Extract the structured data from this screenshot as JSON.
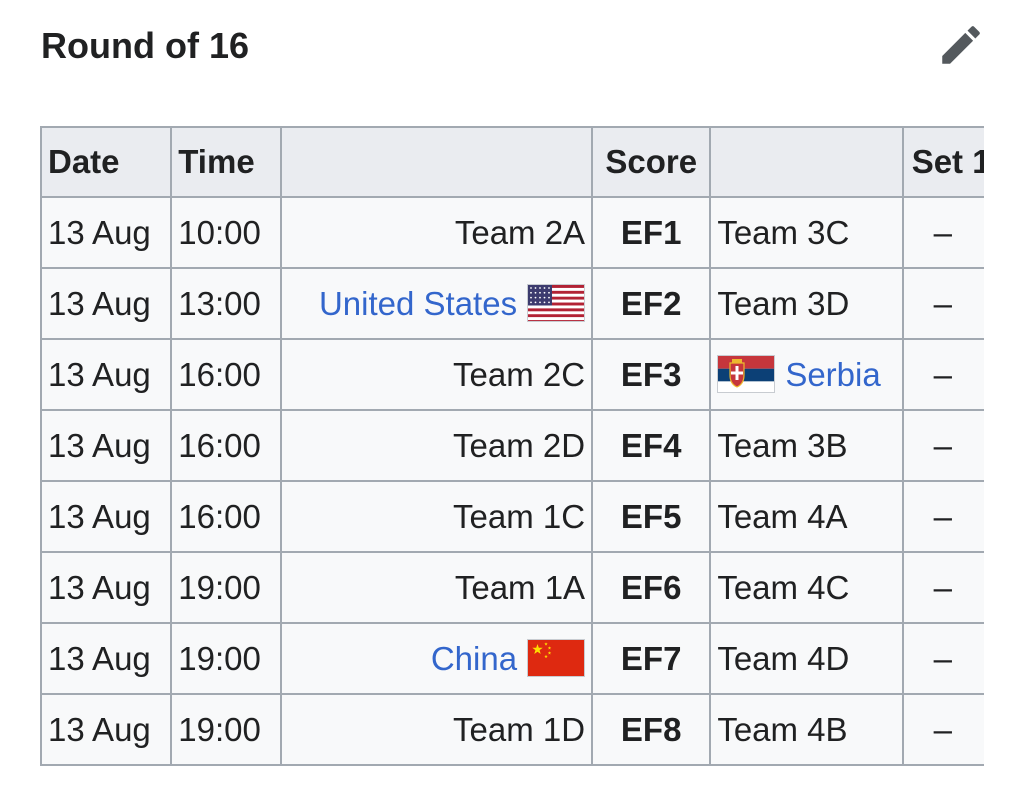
{
  "section": {
    "title": "Round of 16",
    "edit_icon": "pencil-icon"
  },
  "table": {
    "headers": {
      "date": "Date",
      "time": "Time",
      "home": "",
      "score": "Score",
      "away": "",
      "set1": "Set 1"
    },
    "rows": [
      {
        "date": "13 Aug",
        "time": "10:00",
        "home": "Team 2A",
        "home_link": false,
        "home_flag": "",
        "score": "EF1",
        "away": "Team 3C",
        "away_link": false,
        "away_flag": "",
        "set1": "–"
      },
      {
        "date": "13 Aug",
        "time": "13:00",
        "home": "United States",
        "home_link": true,
        "home_flag": "usa-flag-icon",
        "score": "EF2",
        "away": "Team 3D",
        "away_link": false,
        "away_flag": "",
        "set1": "–"
      },
      {
        "date": "13 Aug",
        "time": "16:00",
        "home": "Team 2C",
        "home_link": false,
        "home_flag": "",
        "score": "EF3",
        "away": "Serbia",
        "away_link": true,
        "away_flag": "serbia-flag-icon",
        "set1": "–"
      },
      {
        "date": "13 Aug",
        "time": "16:00",
        "home": "Team 2D",
        "home_link": false,
        "home_flag": "",
        "score": "EF4",
        "away": "Team 3B",
        "away_link": false,
        "away_flag": "",
        "set1": "–"
      },
      {
        "date": "13 Aug",
        "time": "16:00",
        "home": "Team 1C",
        "home_link": false,
        "home_flag": "",
        "score": "EF5",
        "away": "Team 4A",
        "away_link": false,
        "away_flag": "",
        "set1": "–"
      },
      {
        "date": "13 Aug",
        "time": "19:00",
        "home": "Team 1A",
        "home_link": false,
        "home_flag": "",
        "score": "EF6",
        "away": "Team 4C",
        "away_link": false,
        "away_flag": "",
        "set1": "–"
      },
      {
        "date": "13 Aug",
        "time": "19:00",
        "home": "China",
        "home_link": true,
        "home_flag": "china-flag-icon",
        "score": "EF7",
        "away": "Team 4D",
        "away_link": false,
        "away_flag": "",
        "set1": "–"
      },
      {
        "date": "13 Aug",
        "time": "19:00",
        "home": "Team 1D",
        "home_link": false,
        "home_flag": "",
        "score": "EF8",
        "away": "Team 4B",
        "away_link": false,
        "away_flag": "",
        "set1": "–"
      }
    ]
  },
  "colors": {
    "link": "#3366cc",
    "header_bg": "#eaecf0",
    "cell_bg": "#f8f9fa",
    "border": "#a2a9b1",
    "text": "#202122"
  }
}
